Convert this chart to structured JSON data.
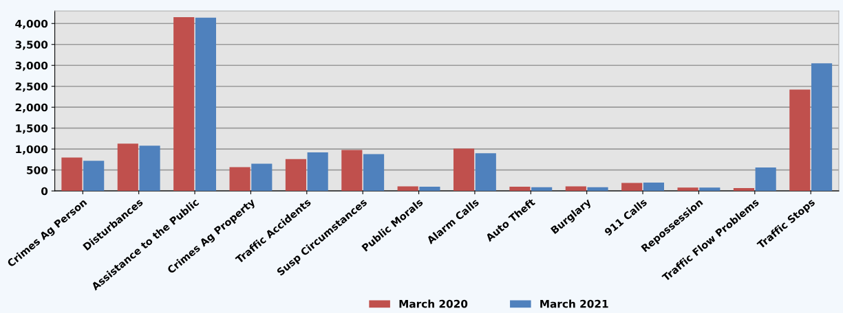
{
  "chart_data": {
    "type": "bar",
    "categories": [
      "Crimes Ag Person",
      "Disturbances",
      "Assistance to the Public",
      "Crimes Ag Property",
      "Traffic Accidents",
      "Susp Circumstances",
      "Public Morals",
      "Alarm Calls",
      "Auto Theft",
      "Burglary",
      "911 Calls",
      "Repossession",
      "Traffic Flow Problems",
      "Traffic Stops"
    ],
    "series": [
      {
        "name": "March 2020",
        "color": "#c0504d",
        "values": [
          800,
          1130,
          4150,
          570,
          760,
          980,
          110,
          1010,
          100,
          110,
          190,
          80,
          70,
          2420
        ]
      },
      {
        "name": "March 2021",
        "color": "#4f81bd",
        "values": [
          720,
          1080,
          4140,
          650,
          920,
          880,
          100,
          900,
          90,
          90,
          200,
          80,
          560,
          3050
        ]
      }
    ],
    "ylim": [
      0,
      4300
    ],
    "yticks": [
      {
        "value": 0,
        "label": "0"
      },
      {
        "value": 500,
        "label": "500"
      },
      {
        "value": 1000,
        "label": "1,000"
      },
      {
        "value": 1500,
        "label": "1,500"
      },
      {
        "value": 2000,
        "label": "2,000"
      },
      {
        "value": 2500,
        "label": "2,500"
      },
      {
        "value": 3000,
        "label": "3,000"
      },
      {
        "value": 3500,
        "label": "3,500"
      },
      {
        "value": 4000,
        "label": "4,000"
      }
    ],
    "grid": "y",
    "legend": "bottom"
  }
}
